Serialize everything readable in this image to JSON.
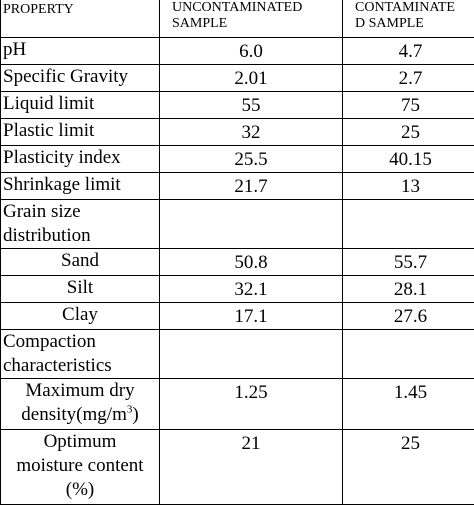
{
  "headers": {
    "property": "PROPERTY",
    "uncontaminated_line1": "UNCONTAMINATED",
    "uncontaminated_line2": "SAMPLE",
    "contaminated_line1": "CONTAMINATE",
    "contaminated_line2": "D SAMPLE"
  },
  "rows": {
    "ph": {
      "label": "pH",
      "uncontaminated": "6.0",
      "contaminated": "4.7"
    },
    "specific_gravity": {
      "label": "Specific Gravity",
      "uncontaminated": "2.01",
      "contaminated": "2.7"
    },
    "liquid_limit": {
      "label": "Liquid limit",
      "uncontaminated": "55",
      "contaminated": "75"
    },
    "plastic_limit": {
      "label": "Plastic limit",
      "uncontaminated": "32",
      "contaminated": "25"
    },
    "plasticity_index": {
      "label": "Plasticity index",
      "uncontaminated": "25.5",
      "contaminated": "40.15"
    },
    "shrinkage_limit": {
      "label": "Shrinkage limit",
      "uncontaminated": "21.7",
      "contaminated": "13"
    },
    "grain_size": {
      "label": "Grain size distribution"
    },
    "sand": {
      "label": "Sand",
      "uncontaminated": "50.8",
      "contaminated": "55.7"
    },
    "silt": {
      "label": "Silt",
      "uncontaminated": "32.1",
      "contaminated": "28.1"
    },
    "clay": {
      "label": "Clay",
      "uncontaminated": "17.1",
      "contaminated": "27.6"
    },
    "compaction": {
      "label": "Compaction characteristics"
    },
    "max_dry_density": {
      "label_line1": "Maximum dry",
      "label_line2": "density(mg/m",
      "label_sup": "3",
      "label_close": ")",
      "uncontaminated": "1.25",
      "contaminated": "1.45"
    },
    "omc": {
      "label_line1": "Optimum",
      "label_line2": "moisture content",
      "label_line3": "(%)",
      "uncontaminated": "21",
      "contaminated": "25"
    }
  }
}
